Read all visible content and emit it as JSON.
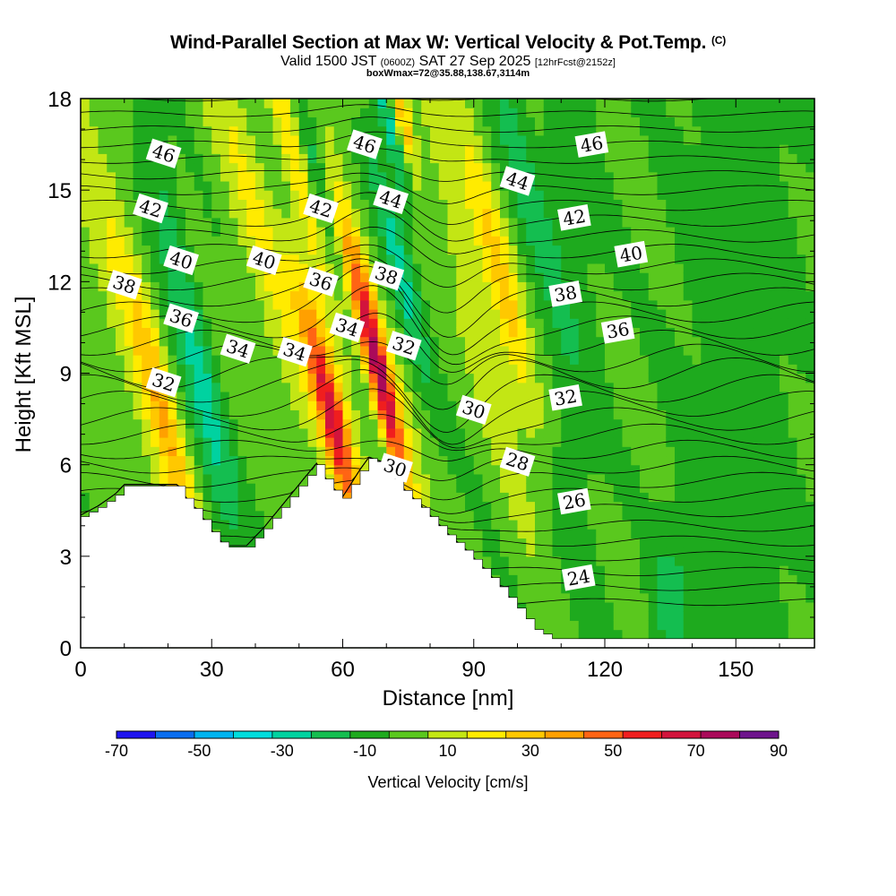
{
  "title": {
    "main": "Wind-Parallel Section at Max W: Vertical Velocity & Pot.Temp.",
    "copyright": "(C)",
    "valid_prefix": "Valid 1500 JST",
    "valid_utc": "(0600Z)",
    "valid_date": "SAT 27 Sep 2025",
    "forecast": "[12hrFcst@2152z]",
    "box_info": "boxWmax=72@35.88,138.67,3114m"
  },
  "colorbar": {
    "label": "Vertical Velocity [cm/s]",
    "tick_labels": [
      "-70",
      "-50",
      "-30",
      "-10",
      "10",
      "30",
      "50",
      "70",
      "90"
    ],
    "bins": [
      -70,
      -60,
      -50,
      -40,
      -30,
      -20,
      -10,
      0,
      10,
      20,
      30,
      40,
      50,
      60,
      70,
      80,
      90
    ],
    "colors": [
      "#1e14f0",
      "#0a6ef0",
      "#00b4f0",
      "#00dcdc",
      "#00d2a0",
      "#14be50",
      "#1eaa1e",
      "#5ac81e",
      "#c3e614",
      "#ffeb00",
      "#ffc800",
      "#ffa000",
      "#ff6414",
      "#f01e1e",
      "#d2143c",
      "#aa0a5a",
      "#6e148c"
    ]
  },
  "chart_data": {
    "type": "heatmap",
    "title": "Wind-Parallel Section at Max W: Vertical Velocity & Pot.Temp.",
    "xlabel": "Distance [nm]",
    "ylabel": "Height [Kft MSL]",
    "xlim": [
      0,
      168
    ],
    "ylim": [
      0,
      18
    ],
    "x_ticks": [
      0,
      30,
      60,
      90,
      120,
      150
    ],
    "y_ticks": [
      0,
      3,
      6,
      9,
      12,
      15,
      18
    ],
    "fill_variable": "Vertical Velocity [cm/s]",
    "contour_variable": "Potential Temperature",
    "max_vertical_velocity": 72,
    "terrain_profile": [
      [
        0,
        4.3
      ],
      [
        4,
        4.6
      ],
      [
        8,
        5.0
      ],
      [
        10,
        5.3
      ],
      [
        22,
        5.3
      ],
      [
        24,
        4.9
      ],
      [
        27,
        4.4
      ],
      [
        30,
        3.8
      ],
      [
        33,
        3.3
      ],
      [
        38,
        3.3
      ],
      [
        42,
        3.9
      ],
      [
        46,
        4.6
      ],
      [
        50,
        5.3
      ],
      [
        54,
        6.0
      ],
      [
        57,
        5.3
      ],
      [
        60,
        4.9
      ],
      [
        64,
        5.8
      ],
      [
        66,
        6.2
      ],
      [
        70,
        6.0
      ],
      [
        73,
        5.3
      ],
      [
        78,
        4.6
      ],
      [
        84,
        3.7
      ],
      [
        88,
        3.2
      ],
      [
        92,
        2.6
      ],
      [
        96,
        2.0
      ],
      [
        100,
        1.3
      ],
      [
        104,
        0.6
      ],
      [
        108,
        0.3
      ],
      [
        168,
        0.3
      ]
    ],
    "updraft_cores": [
      {
        "x": 20,
        "y": 7.0,
        "w": 30
      },
      {
        "x": 57,
        "y": 7.9,
        "w": 65
      },
      {
        "x": 68.5,
        "y": 8.9,
        "w": 72
      },
      {
        "x": 73,
        "y": 17.7,
        "w": 40
      },
      {
        "x": 97,
        "y": 11.6,
        "w": 30
      },
      {
        "x": 51,
        "y": 15.0,
        "w": 25
      }
    ],
    "downdraft_cores": [
      {
        "x": 23,
        "y": 12.2,
        "w": -20
      },
      {
        "x": 53,
        "y": 16.0,
        "w": -30
      },
      {
        "x": 71,
        "y": 17.0,
        "w": -35
      },
      {
        "x": 72.5,
        "y": 13.0,
        "w": -25
      },
      {
        "x": 29,
        "y": 6.5,
        "w": -15
      },
      {
        "x": 135,
        "y": 1.5,
        "w": -15
      }
    ],
    "contour_labels": [
      {
        "text": "46",
        "x": 19,
        "y": 16.2
      },
      {
        "text": "42",
        "x": 16,
        "y": 14.4
      },
      {
        "text": "40",
        "x": 23,
        "y": 12.7
      },
      {
        "text": "38",
        "x": 10,
        "y": 11.9
      },
      {
        "text": "36",
        "x": 23,
        "y": 10.8
      },
      {
        "text": "34",
        "x": 36,
        "y": 9.8
      },
      {
        "text": "34",
        "x": 49,
        "y": 9.7
      },
      {
        "text": "32",
        "x": 19,
        "y": 8.7
      },
      {
        "text": "40",
        "x": 42,
        "y": 12.7
      },
      {
        "text": "36",
        "x": 55,
        "y": 12.0
      },
      {
        "text": "42",
        "x": 55,
        "y": 14.4
      },
      {
        "text": "46",
        "x": 65,
        "y": 16.5
      },
      {
        "text": "44",
        "x": 71,
        "y": 14.7
      },
      {
        "text": "38",
        "x": 70,
        "y": 12.2
      },
      {
        "text": "34",
        "x": 61,
        "y": 10.5
      },
      {
        "text": "32",
        "x": 74,
        "y": 9.9
      },
      {
        "text": "30",
        "x": 72,
        "y": 5.9
      },
      {
        "text": "30",
        "x": 90,
        "y": 7.8
      },
      {
        "text": "44",
        "x": 100,
        "y": 15.3
      },
      {
        "text": "46",
        "x": 117,
        "y": 16.5
      },
      {
        "text": "42",
        "x": 113,
        "y": 14.1
      },
      {
        "text": "40",
        "x": 126,
        "y": 12.9
      },
      {
        "text": "38",
        "x": 111,
        "y": 11.6
      },
      {
        "text": "36",
        "x": 123,
        "y": 10.4
      },
      {
        "text": "32",
        "x": 111,
        "y": 8.2
      },
      {
        "text": "28",
        "x": 100,
        "y": 6.1
      },
      {
        "text": "26",
        "x": 113,
        "y": 4.8
      },
      {
        "text": "24",
        "x": 114,
        "y": 2.3
      }
    ]
  }
}
